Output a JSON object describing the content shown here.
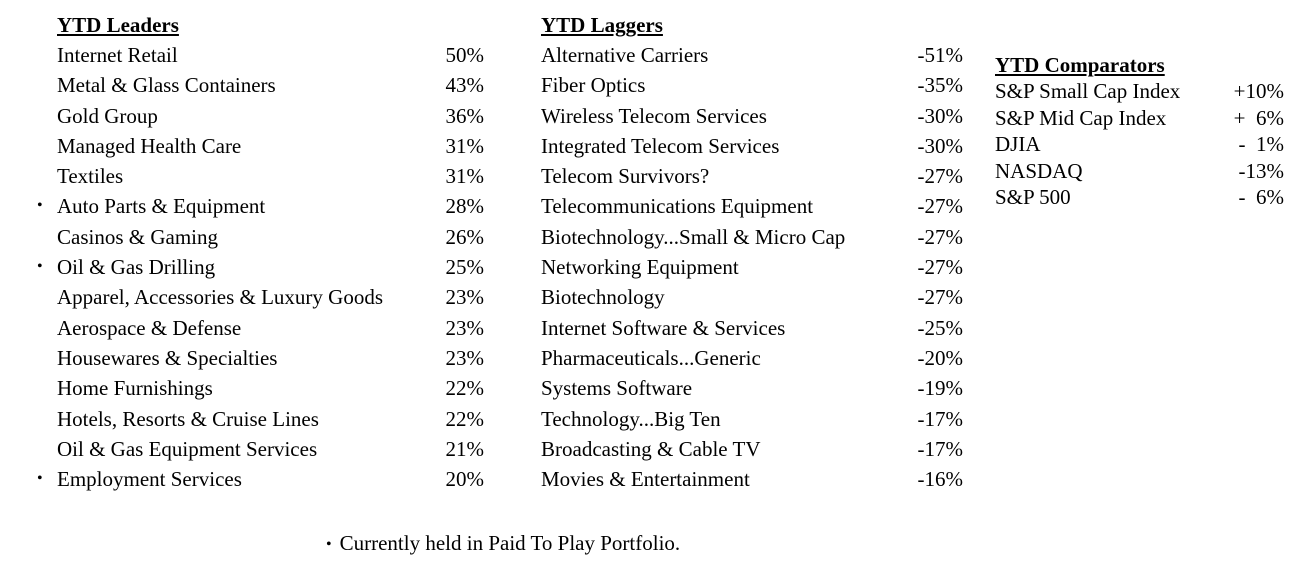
{
  "leaders": {
    "title": "YTD Leaders",
    "items": [
      {
        "name": "Internet Retail",
        "value": "50%",
        "held": false
      },
      {
        "name": "Metal & Glass Containers",
        "value": "43%",
        "held": false
      },
      {
        "name": "Gold Group",
        "value": "36%",
        "held": false
      },
      {
        "name": "Managed Health Care",
        "value": "31%",
        "held": false
      },
      {
        "name": "Textiles",
        "value": "31%",
        "held": false
      },
      {
        "name": "Auto Parts & Equipment",
        "value": "28%",
        "held": true
      },
      {
        "name": "Casinos & Gaming",
        "value": "26%",
        "held": false
      },
      {
        "name": "Oil & Gas Drilling",
        "value": "25%",
        "held": true
      },
      {
        "name": "Apparel, Accessories & Luxury Goods",
        "value": "23%",
        "held": false
      },
      {
        "name": "Aerospace & Defense",
        "value": "23%",
        "held": false
      },
      {
        "name": "Housewares & Specialties",
        "value": "23%",
        "held": false
      },
      {
        "name": "Home Furnishings",
        "value": "22%",
        "held": false
      },
      {
        "name": "Hotels, Resorts & Cruise Lines",
        "value": "22%",
        "held": false
      },
      {
        "name": "Oil & Gas Equipment Services",
        "value": "21%",
        "held": false
      },
      {
        "name": "Employment Services",
        "value": "20%",
        "held": true
      }
    ]
  },
  "laggers": {
    "title": "YTD Laggers",
    "items": [
      {
        "name": "Alternative Carriers",
        "value": "-51%"
      },
      {
        "name": "Fiber Optics",
        "value": "-35%"
      },
      {
        "name": "Wireless Telecom Services",
        "value": "-30%"
      },
      {
        "name": "Integrated Telecom Services",
        "value": "-30%"
      },
      {
        "name": "Telecom Survivors?",
        "value": "-27%"
      },
      {
        "name": "Telecommunications Equipment",
        "value": "-27%"
      },
      {
        "name": "Biotechnology...Small & Micro Cap",
        "value": "-27%"
      },
      {
        "name": "Networking Equipment",
        "value": "-27%"
      },
      {
        "name": "Biotechnology",
        "value": "-27%"
      },
      {
        "name": "Internet Software & Services",
        "value": "-25%"
      },
      {
        "name": "Pharmaceuticals...Generic",
        "value": "-20%"
      },
      {
        "name": "Systems Software",
        "value": "-19%"
      },
      {
        "name": "Technology...Big Ten",
        "value": "-17%"
      },
      {
        "name": "Broadcasting & Cable TV",
        "value": "-17%"
      },
      {
        "name": "Movies & Entertainment",
        "value": "-16%"
      }
    ]
  },
  "comparators": {
    "title": "YTD Comparators",
    "items": [
      {
        "name": "S&P Small Cap Index",
        "value": "+10%"
      },
      {
        "name": "S&P Mid Cap Index",
        "value": "+  6%"
      },
      {
        "name": "DJIA",
        "value": "-  1%"
      },
      {
        "name": "NASDAQ",
        "value": "-13%"
      },
      {
        "name": "S&P 500",
        "value": "-  6%"
      }
    ]
  },
  "footnote": {
    "bullet": "•",
    "text": "Currently held in Paid To Play Portfolio."
  }
}
